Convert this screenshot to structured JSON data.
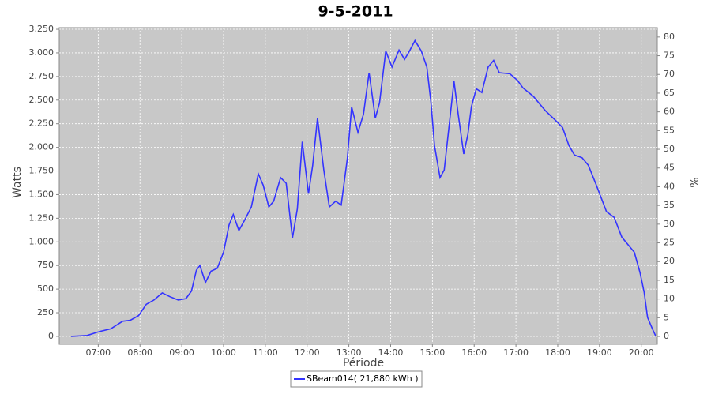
{
  "chart_data": {
    "type": "line",
    "title": "9-5-2011",
    "x_label": "Période",
    "y_label": "Watts",
    "y2_label": "%",
    "x": [
      "06:21",
      "06:44",
      "07:01",
      "07:18",
      "07:35",
      "07:46",
      "07:58",
      "08:09",
      "08:20",
      "08:32",
      "08:43",
      "08:55",
      "09:06",
      "09:14",
      "09:21",
      "09:26",
      "09:34",
      "09:42",
      "09:51",
      "10:00",
      "10:08",
      "10:14",
      "10:22",
      "10:31",
      "10:40",
      "10:50",
      "10:57",
      "11:05",
      "11:12",
      "11:22",
      "11:30",
      "11:39",
      "11:46",
      "11:53",
      "12:02",
      "12:08",
      "12:15",
      "12:24",
      "12:32",
      "12:41",
      "12:49",
      "12:58",
      "13:04",
      "13:13",
      "13:21",
      "13:29",
      "13:38",
      "13:44",
      "13:53",
      "14:02",
      "14:12",
      "14:20",
      "14:27",
      "14:35",
      "14:44",
      "14:52",
      "14:58",
      "15:03",
      "15:11",
      "15:17",
      "15:24",
      "15:31",
      "15:37",
      "15:45",
      "15:51",
      "15:56",
      "16:03",
      "16:11",
      "16:20",
      "16:28",
      "16:36",
      "16:51",
      "17:02",
      "17:10",
      "17:25",
      "17:42",
      "17:59",
      "18:07",
      "18:16",
      "18:24",
      "18:35",
      "18:44",
      "18:55",
      "19:10",
      "19:21",
      "19:32",
      "19:41",
      "19:50",
      "19:58",
      "20:04",
      "20:09",
      "20:16",
      "20:21"
    ],
    "series": [
      {
        "name": "SBeam014( 21,880 kWh )",
        "color": "#3333ff",
        "values": [
          0,
          10,
          50,
          80,
          160,
          170,
          220,
          340,
          385,
          460,
          420,
          385,
          400,
          480,
          700,
          750,
          570,
          690,
          720,
          890,
          1180,
          1290,
          1120,
          1240,
          1370,
          1720,
          1600,
          1370,
          1430,
          1680,
          1620,
          1040,
          1350,
          2060,
          1510,
          1810,
          2310,
          1760,
          1370,
          1430,
          1390,
          1890,
          2430,
          2160,
          2350,
          2790,
          2310,
          2470,
          3020,
          2850,
          3030,
          2930,
          3020,
          3130,
          3020,
          2850,
          2470,
          2020,
          1680,
          1760,
          2230,
          2700,
          2350,
          1930,
          2140,
          2430,
          2620,
          2580,
          2850,
          2920,
          2790,
          2780,
          2710,
          2630,
          2540,
          2390,
          2270,
          2210,
          2020,
          1920,
          1890,
          1810,
          1610,
          1320,
          1260,
          1050,
          970,
          890,
          680,
          470,
          200,
          80,
          0
        ]
      }
    ],
    "xlim": [
      "06:04",
      "20:23"
    ],
    "xticks": [
      "07:00",
      "08:00",
      "09:00",
      "10:00",
      "11:00",
      "12:00",
      "13:00",
      "14:00",
      "15:00",
      "16:00",
      "17:00",
      "18:00",
      "19:00",
      "20:00"
    ],
    "ylim": [
      -84,
      3267
    ],
    "yticks": [
      0,
      {
        "value": 250,
        "label": "250"
      },
      {
        "value": 500,
        "label": "500"
      },
      {
        "value": 750,
        "label": "750"
      },
      {
        "value": 1000,
        "label": "1.000"
      },
      {
        "value": 1250,
        "label": "1.250"
      },
      {
        "value": 1500,
        "label": "1.500"
      },
      {
        "value": 1750,
        "label": "1.750"
      },
      {
        "value": 2000,
        "label": "2.000"
      },
      {
        "value": 2250,
        "label": "2.250"
      },
      {
        "value": 2500,
        "label": "2.500"
      },
      {
        "value": 2750,
        "label": "2.750"
      },
      {
        "value": 3000,
        "label": "3.000"
      },
      {
        "value": 3250,
        "label": "3.250"
      }
    ],
    "y2lim": [
      -2.1,
      82.5
    ],
    "y2ticks": [
      0,
      5,
      10,
      15,
      20,
      25,
      30,
      35,
      40,
      45,
      50,
      55,
      60,
      65,
      70,
      75,
      80
    ],
    "grid": true,
    "plot_background": "#c8c8c8",
    "legend": "bottom"
  }
}
